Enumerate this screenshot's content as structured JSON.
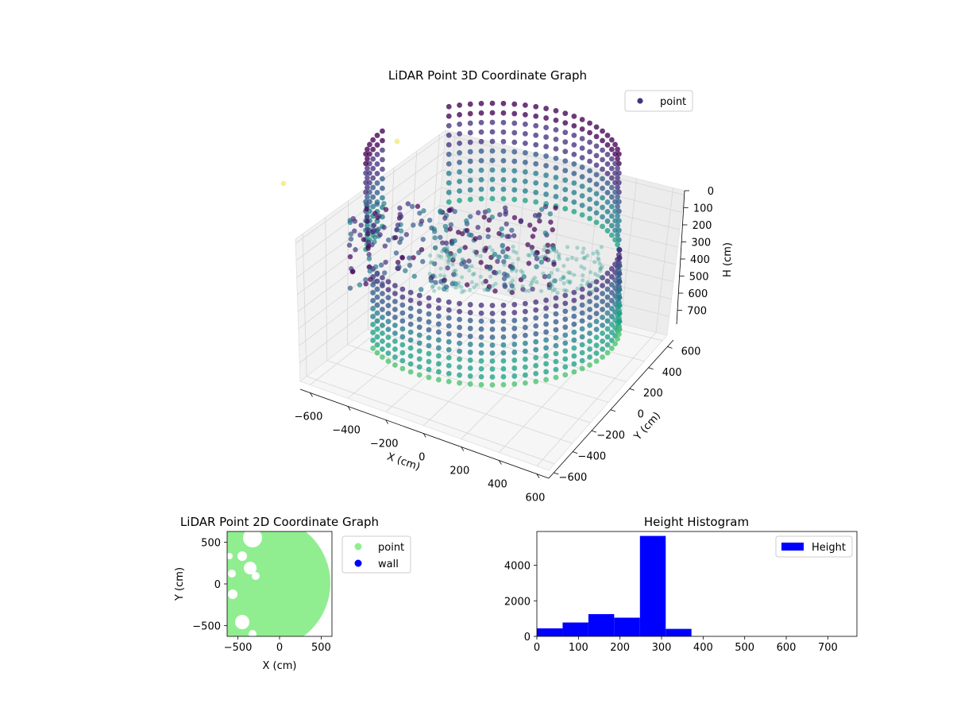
{
  "chart_data": [
    {
      "type": "scatter",
      "projection": "3d",
      "title": "LiDAR Point 3D Coordinate Graph",
      "xlabel": "X (cm)",
      "ylabel": "Y (cm)",
      "zlabel": "H (cm)",
      "x_ticks": [
        "−600",
        "−400",
        "−200",
        "0",
        "200",
        "400",
        "600"
      ],
      "y_ticks": [
        "−600",
        "−400",
        "−200",
        "0",
        "200",
        "400",
        "600"
      ],
      "z_ticks": [
        "0",
        "100",
        "200",
        "300",
        "400",
        "500",
        "600",
        "700"
      ],
      "xlim": [
        -600,
        600
      ],
      "ylim": [
        -600,
        600
      ],
      "zlim": [
        0,
        750
      ],
      "z_inverted": true,
      "grid": true,
      "legend": {
        "position": "top-right",
        "entries": [
          "point"
        ]
      },
      "colormap": "viridis",
      "series": [
        {
          "name": "point",
          "color": "#46327e",
          "description_points": [
            {
              "x": -550,
              "y": 380,
              "z": 700
            },
            {
              "x": -580,
              "y": 90,
              "z": 720
            }
          ]
        }
      ]
    },
    {
      "type": "scatter",
      "title": "LiDAR Point 2D Coordinate Graph",
      "xlabel": "X (cm)",
      "ylabel": "Y (cm)",
      "x_ticks": [
        "−500",
        "0",
        "500"
      ],
      "y_ticks": [
        "−500",
        "0",
        "500"
      ],
      "xlim": [
        -630,
        630
      ],
      "ylim": [
        -630,
        630
      ],
      "legend": {
        "position": "right",
        "entries": [
          "point",
          "wall"
        ]
      },
      "series": [
        {
          "name": "point",
          "color": "#90ee90"
        },
        {
          "name": "wall",
          "color": "#0000ff"
        }
      ]
    },
    {
      "type": "bar",
      "title": "Height Histogram",
      "x_ticks": [
        "0",
        "100",
        "200",
        "300",
        "400",
        "500",
        "600",
        "700"
      ],
      "y_ticks": [
        "0",
        "2000",
        "4000"
      ],
      "xlim": [
        0,
        770
      ],
      "ylim": [
        0,
        5900
      ],
      "legend": {
        "position": "top-right",
        "entries": [
          "Height"
        ]
      },
      "series": [
        {
          "name": "Height",
          "color": "#0000ff",
          "bins": [
            {
              "from": 0,
              "to": 62,
              "count": 450
            },
            {
              "from": 62,
              "to": 124,
              "count": 780
            },
            {
              "from": 124,
              "to": 186,
              "count": 1250
            },
            {
              "from": 186,
              "to": 248,
              "count": 1050
            },
            {
              "from": 248,
              "to": 310,
              "count": 5650
            },
            {
              "from": 310,
              "to": 372,
              "count": 420
            }
          ]
        }
      ]
    }
  ]
}
